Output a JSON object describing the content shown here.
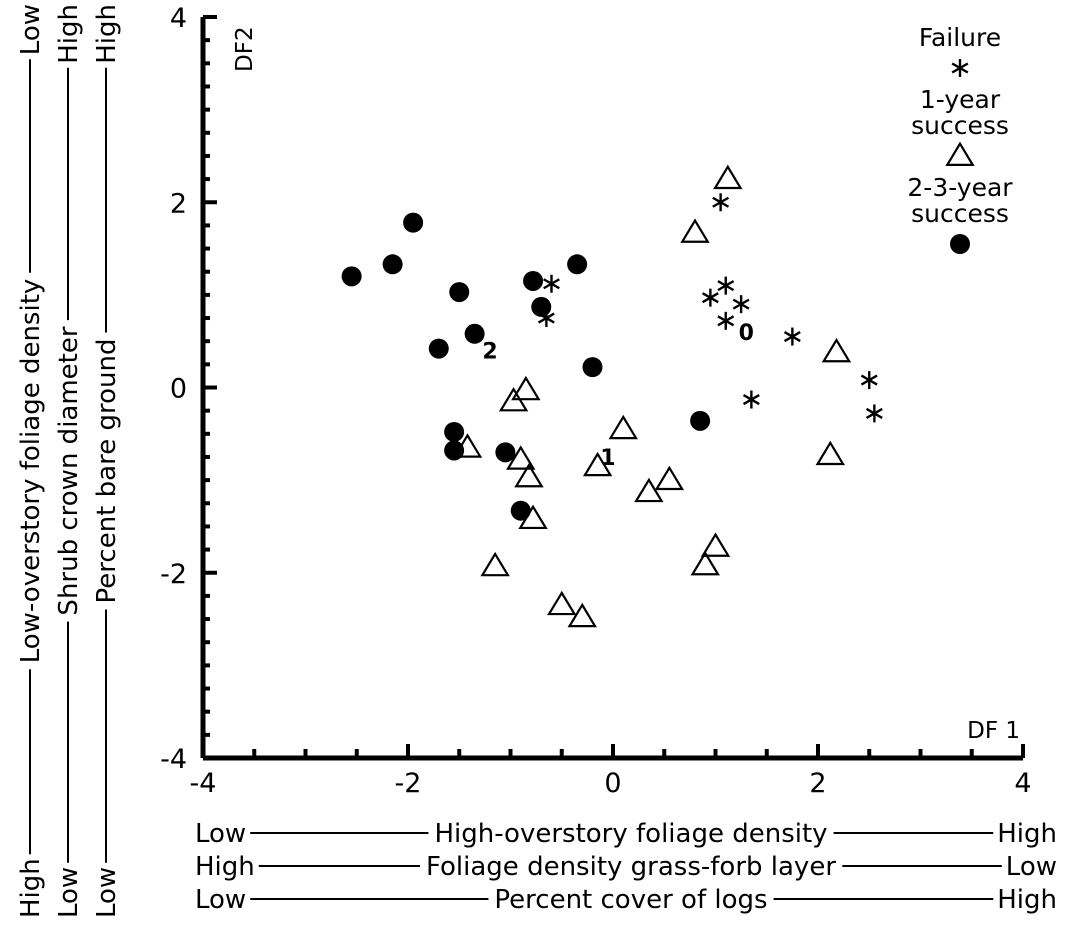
{
  "chart_data": {
    "type": "scatter",
    "xlim": [
      -4,
      4
    ],
    "ylim": [
      -4,
      4
    ],
    "grid": false,
    "legend_position": "top-right",
    "x_axis_name": "DF 1",
    "y_axis_name": "DF2",
    "x_ticks": [
      "-4",
      "-2",
      "0",
      "2",
      "4"
    ],
    "y_ticks": [
      "4",
      "2",
      "0",
      "-2",
      "-4"
    ],
    "xlabel_lines": [
      {
        "left": "Low",
        "middle": "High-overstory foliage density",
        "right": "High"
      },
      {
        "left": "High",
        "middle": "Foliage density grass-forb layer",
        "right": "Low"
      },
      {
        "left": "Low",
        "middle": "Percent cover of logs",
        "right": "High"
      }
    ],
    "ylabel_lines": [
      {
        "left": "High",
        "middle": "Low-overstory foliage density",
        "right": "Low"
      },
      {
        "left": "Low",
        "middle": "Shrub crown diameter",
        "right": "High"
      },
      {
        "left": "Low",
        "middle": "Percent bare ground",
        "right": "High"
      }
    ],
    "legend": [
      {
        "label": "Failure",
        "marker": "asterisk"
      },
      {
        "label": "1-year success",
        "label_lines": [
          "1-year",
          "success"
        ],
        "marker": "triangle"
      },
      {
        "label": "2-3-year success",
        "label_lines": [
          "2-3-year",
          "success"
        ],
        "marker": "circle"
      }
    ],
    "centroid_labels": [
      {
        "text": "0",
        "x": 1.3,
        "y": 0.6
      },
      {
        "text": "1",
        "x": -0.05,
        "y": -0.75
      },
      {
        "text": "2",
        "x": -1.2,
        "y": 0.4
      }
    ],
    "series": [
      {
        "name": "Failure",
        "marker": "asterisk",
        "points": [
          [
            -0.6,
            1.12
          ],
          [
            -0.65,
            0.75
          ],
          [
            0.95,
            0.97
          ],
          [
            1.05,
            2.0
          ],
          [
            1.1,
            1.1
          ],
          [
            1.1,
            0.72
          ],
          [
            1.25,
            0.9
          ],
          [
            1.75,
            0.55
          ],
          [
            1.35,
            -0.13
          ],
          [
            2.5,
            0.08
          ],
          [
            2.55,
            -0.28
          ]
        ]
      },
      {
        "name": "1-year success",
        "marker": "triangle",
        "points": [
          [
            1.12,
            2.25
          ],
          [
            0.8,
            1.67
          ],
          [
            2.18,
            0.38
          ],
          [
            -0.97,
            -0.15
          ],
          [
            -0.85,
            -0.03
          ],
          [
            0.1,
            -0.45
          ],
          [
            -0.15,
            -0.85
          ],
          [
            -1.42,
            -0.65
          ],
          [
            -0.9,
            -0.78
          ],
          [
            -0.82,
            -0.97
          ],
          [
            0.55,
            -1.0
          ],
          [
            0.35,
            -1.13
          ],
          [
            -0.78,
            -1.42
          ],
          [
            2.12,
            -0.73
          ],
          [
            -1.15,
            -1.93
          ],
          [
            1.0,
            -1.72
          ],
          [
            0.9,
            -1.92
          ],
          [
            -0.5,
            -2.35
          ],
          [
            -0.3,
            -2.48
          ]
        ]
      },
      {
        "name": "2-3-year success",
        "marker": "circle",
        "points": [
          [
            -1.95,
            1.78
          ],
          [
            -2.55,
            1.2
          ],
          [
            -2.15,
            1.33
          ],
          [
            -1.5,
            1.03
          ],
          [
            -0.78,
            1.15
          ],
          [
            -0.35,
            1.33
          ],
          [
            -0.7,
            0.87
          ],
          [
            -1.35,
            0.58
          ],
          [
            -1.7,
            0.42
          ],
          [
            -0.2,
            0.22
          ],
          [
            -1.55,
            -0.48
          ],
          [
            -1.55,
            -0.68
          ],
          [
            -1.05,
            -0.7
          ],
          [
            0.85,
            -0.36
          ],
          [
            -0.9,
            -1.33
          ]
        ]
      }
    ]
  }
}
